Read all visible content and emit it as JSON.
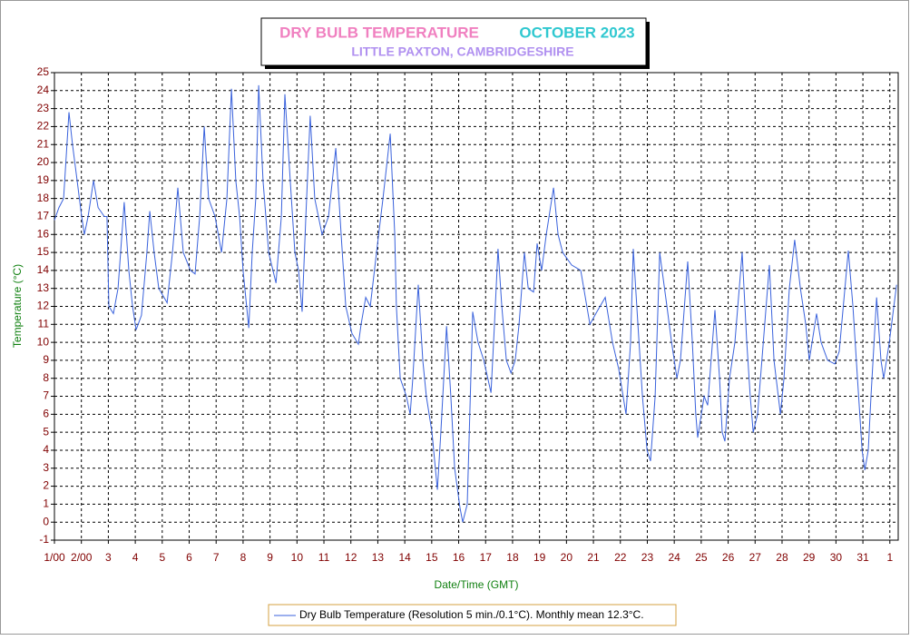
{
  "chart_data": {
    "type": "line",
    "title": "DRY BULB TEMPERATURE",
    "title_period": "OCTOBER 2023",
    "subtitle": "LITTLE PAXTON, CAMBRIDGESHIRE",
    "xlabel": "Date/Time (GMT)",
    "ylabel": "Temperature (°C)",
    "xlim": [
      0,
      31.31
    ],
    "ylim": [
      -1,
      25
    ],
    "yticks": [
      -1,
      0,
      1,
      2,
      3,
      4,
      5,
      6,
      7,
      8,
      9,
      10,
      11,
      12,
      13,
      14,
      15,
      16,
      17,
      18,
      19,
      20,
      21,
      22,
      23,
      24,
      25
    ],
    "xticks": [
      {
        "value": 0,
        "label": "1/00"
      },
      {
        "value": 1,
        "label": "2/00"
      },
      {
        "value": 2,
        "label": "3"
      },
      {
        "value": 3,
        "label": "4"
      },
      {
        "value": 4,
        "label": "5"
      },
      {
        "value": 5,
        "label": "6"
      },
      {
        "value": 6,
        "label": "7"
      },
      {
        "value": 7,
        "label": "8"
      },
      {
        "value": 8,
        "label": "9"
      },
      {
        "value": 9,
        "label": "10"
      },
      {
        "value": 10,
        "label": "11"
      },
      {
        "value": 11,
        "label": "12"
      },
      {
        "value": 12,
        "label": "13"
      },
      {
        "value": 13,
        "label": "14"
      },
      {
        "value": 14,
        "label": "15"
      },
      {
        "value": 15,
        "label": "16"
      },
      {
        "value": 16,
        "label": "17"
      },
      {
        "value": 17,
        "label": "18"
      },
      {
        "value": 18,
        "label": "19"
      },
      {
        "value": 19,
        "label": "20"
      },
      {
        "value": 20,
        "label": "21"
      },
      {
        "value": 21,
        "label": "22"
      },
      {
        "value": 22,
        "label": "23"
      },
      {
        "value": 23,
        "label": "24"
      },
      {
        "value": 24,
        "label": "25"
      },
      {
        "value": 25,
        "label": "26"
      },
      {
        "value": 26,
        "label": "27"
      },
      {
        "value": 27,
        "label": "28"
      },
      {
        "value": 28,
        "label": "29"
      },
      {
        "value": 29,
        "label": "30"
      },
      {
        "value": 30,
        "label": "31"
      },
      {
        "value": 31,
        "label": "1"
      }
    ],
    "grid": true,
    "x": [
      0.0,
      0.17,
      0.34,
      0.54,
      0.67,
      0.84,
      1.01,
      1.11,
      1.25,
      1.45,
      1.62,
      1.85,
      1.95,
      2.02,
      2.19,
      2.36,
      2.59,
      2.76,
      2.9,
      3.03,
      3.23,
      3.43,
      3.54,
      3.7,
      3.87,
      4.18,
      4.38,
      4.58,
      4.78,
      5.05,
      5.22,
      5.39,
      5.56,
      5.72,
      5.96,
      6.2,
      6.4,
      6.57,
      6.73,
      6.87,
      7.0,
      7.21,
      7.34,
      7.47,
      7.58,
      7.74,
      7.95,
      8.22,
      8.42,
      8.55,
      8.75,
      8.92,
      9.06,
      9.19,
      9.33,
      9.49,
      9.66,
      9.93,
      10.17,
      10.44,
      10.64,
      10.81,
      11.04,
      11.28,
      11.38,
      11.55,
      11.72,
      11.95,
      12.19,
      12.46,
      12.63,
      12.69,
      12.83,
      13.06,
      13.2,
      13.3,
      13.5,
      13.67,
      13.8,
      14.01,
      14.21,
      14.34,
      14.55,
      14.71,
      14.85,
      15.05,
      15.15,
      15.32,
      15.52,
      15.72,
      15.93,
      16.2,
      16.33,
      16.46,
      16.6,
      16.77,
      16.94,
      17.1,
      17.24,
      17.44,
      17.58,
      17.78,
      17.91,
      18.08,
      18.25,
      18.52,
      18.69,
      18.86,
      19.19,
      19.53,
      19.87,
      20.13,
      20.44,
      20.71,
      20.94,
      21.21,
      21.38,
      21.48,
      21.65,
      21.82,
      21.99,
      22.12,
      22.29,
      22.46,
      22.73,
      22.9,
      23.1,
      23.23,
      23.5,
      23.67,
      23.8,
      23.87,
      24.11,
      24.24,
      24.51,
      24.68,
      24.78,
      24.88,
      25.05,
      25.25,
      25.52,
      25.69,
      25.82,
      25.93,
      26.09,
      26.2,
      26.53,
      26.7,
      26.94,
      27.07,
      27.27,
      27.47,
      27.68,
      27.88,
      28.01,
      28.28,
      28.45,
      28.69,
      28.96,
      29.12,
      29.46,
      29.63,
      29.8,
      29.97,
      30.07,
      30.2,
      30.3,
      30.51,
      30.67,
      30.77,
      30.98,
      31.25
    ],
    "series": [
      {
        "name": "Dry Bulb Temperature (Resolution 5 min./0.1°C). Monthly mean 12.3°C.",
        "color": "#3a62dc",
        "values": [
          16.8,
          17.5,
          18,
          22.8,
          21,
          19,
          17,
          16,
          17,
          19,
          17.5,
          17,
          17,
          12,
          11.6,
          13,
          17.8,
          14,
          12,
          10.7,
          11.5,
          15,
          17.3,
          15,
          13,
          12.2,
          15,
          18.6,
          15,
          14,
          13.8,
          17,
          22,
          18,
          17,
          15,
          18,
          24.1,
          19,
          17,
          14,
          10.8,
          15,
          18,
          24.3,
          19,
          15,
          13.3,
          17,
          23.8,
          19,
          15,
          14,
          11.7,
          17,
          22.6,
          18,
          16,
          17,
          20.8,
          16,
          12,
          10.5,
          9.9,
          11,
          12.5,
          12,
          15,
          18,
          21.6,
          16,
          12,
          8,
          7,
          6,
          8,
          13.2,
          9,
          7,
          5,
          1.8,
          5,
          10.9,
          7,
          3,
          0.8,
          0,
          1,
          11.7,
          10,
          9,
          7.2,
          11,
          15.2,
          12,
          9,
          8.3,
          9,
          11,
          15,
          13,
          12.8,
          15.5,
          14,
          16,
          18.6,
          16,
          15,
          14.3,
          14,
          11,
          11.7,
          12.5,
          10,
          8.5,
          6,
          10,
          15.2,
          11,
          7,
          4,
          3.4,
          7,
          15,
          12,
          10,
          8,
          9,
          14.5,
          10,
          6,
          4.7,
          7,
          6.5,
          11.8,
          8,
          5,
          4.5,
          8,
          10,
          15,
          10,
          7,
          5,
          6,
          8,
          14.3,
          9,
          6,
          8,
          13,
          15.7,
          13,
          11,
          9,
          11.6,
          10,
          9,
          8.8,
          9.5,
          15.1,
          12,
          8,
          4,
          2.9,
          4,
          7,
          12.5,
          9,
          8,
          10,
          13.2
        ]
      }
    ]
  }
}
